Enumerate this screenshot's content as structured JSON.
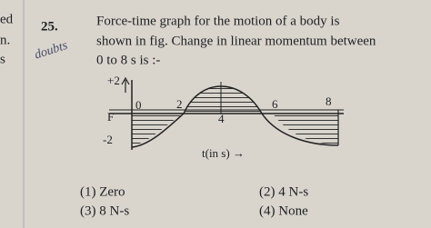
{
  "margin": [
    "ed",
    "n.",
    "s"
  ],
  "question": {
    "number": "25.",
    "note": "doubts",
    "lines": [
      "Force-time graph for the motion of a body is",
      "shown in fig. Change in linear momentum between",
      "0 to 8 s is :-"
    ]
  },
  "figure": {
    "y_labels": [
      "+2",
      "F",
      "-2"
    ],
    "x_labels": [
      "0",
      "2",
      "4",
      "6",
      "8"
    ],
    "x_axis_label": "t(in s) →"
  },
  "options": [
    "(1) Zero",
    "(2) 4 N-s",
    "(3) 8 N-s",
    "(4) None"
  ]
}
